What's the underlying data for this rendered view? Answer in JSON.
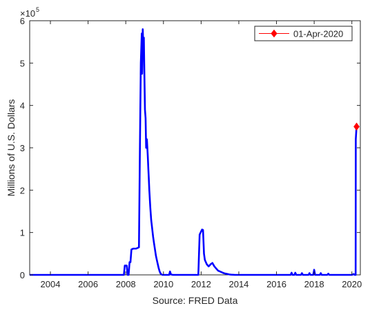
{
  "chart_data": {
    "type": "line",
    "title": "",
    "xlabel": "Source: FRED Data",
    "ylabel": "Millions of U.S. Dollars",
    "y_exponent_base": "×10",
    "y_exponent_power": "5",
    "xlim": [
      2002.9,
      2020.45
    ],
    "ylim": [
      0,
      600000
    ],
    "x_ticks": [
      2004,
      2006,
      2008,
      2010,
      2012,
      2014,
      2016,
      2018,
      2020
    ],
    "x_tick_labels": [
      "2004",
      "2006",
      "2008",
      "2010",
      "2012",
      "2014",
      "2016",
      "2018",
      "2020"
    ],
    "y_ticks": [
      0,
      100000,
      200000,
      300000,
      400000,
      500000,
      600000
    ],
    "y_tick_labels": [
      "0",
      "1",
      "2",
      "3",
      "4",
      "5",
      "6"
    ],
    "grid": false,
    "legend_position": "top-right",
    "series": [
      {
        "name": "01-Apr-2020",
        "color": "#0000ff",
        "x": [
          2002.9,
          2007.9,
          2007.95,
          2008.05,
          2008.1,
          2008.15,
          2008.2,
          2008.25,
          2008.3,
          2008.4,
          2008.55,
          2008.7,
          2008.75,
          2008.8,
          2008.85,
          2008.87,
          2008.9,
          2008.93,
          2008.96,
          2008.98,
          2009.02,
          2009.05,
          2009.08,
          2009.12,
          2009.17,
          2009.2,
          2009.22,
          2009.25,
          2009.3,
          2009.35,
          2009.4,
          2009.45,
          2009.5,
          2009.55,
          2009.6,
          2009.65,
          2009.7,
          2009.75,
          2009.8,
          2009.85,
          2009.9,
          2009.95,
          2010.0,
          2010.1,
          2010.2,
          2010.3,
          2010.35,
          2010.4,
          2010.5,
          2011.85,
          2011.92,
          2011.97,
          2012.05,
          2012.1,
          2012.15,
          2012.2,
          2012.3,
          2012.4,
          2012.5,
          2012.6,
          2012.7,
          2012.8,
          2012.9,
          2013.0,
          2013.1,
          2013.2,
          2013.3,
          2013.4,
          2013.5,
          2013.6,
          2013.8,
          2014.0,
          2014.5,
          2015.0,
          2015.5,
          2016.0,
          2016.5,
          2016.75,
          2016.8,
          2016.85,
          2016.95,
          2017.0,
          2017.05,
          2017.3,
          2017.35,
          2017.4,
          2017.7,
          2017.75,
          2017.8,
          2017.95,
          2018.0,
          2018.05,
          2018.1,
          2018.3,
          2018.35,
          2018.4,
          2018.7,
          2018.75,
          2018.8,
          2019.0,
          2019.5,
          2019.9,
          2020.0,
          2020.1,
          2020.15,
          2020.18,
          2020.2,
          2020.21,
          2020.25
        ],
        "y": [
          0,
          0,
          22000,
          22000,
          0,
          0,
          30000,
          30000,
          60000,
          62000,
          62000,
          65000,
          300000,
          500000,
          570000,
          475000,
          580000,
          540000,
          560000,
          500000,
          390000,
          370000,
          300000,
          320000,
          280000,
          250000,
          230000,
          200000,
          160000,
          130000,
          110000,
          90000,
          75000,
          60000,
          45000,
          35000,
          25000,
          15000,
          8000,
          3000,
          1000,
          0,
          0,
          0,
          0,
          0,
          8000,
          1000,
          0,
          0,
          95000,
          100000,
          107000,
          106000,
          50000,
          35000,
          25000,
          20000,
          25000,
          28000,
          20000,
          15000,
          10000,
          8000,
          6000,
          4000,
          3000,
          2000,
          1000,
          500,
          0,
          0,
          0,
          0,
          0,
          0,
          0,
          0,
          5000,
          0,
          0,
          5000,
          0,
          0,
          4000,
          0,
          0,
          4000,
          0,
          0,
          12000,
          0,
          0,
          0,
          4000,
          0,
          0,
          3000,
          0,
          0,
          0,
          0,
          0,
          2000,
          0,
          0,
          0,
          320000,
          350000
        ]
      }
    ],
    "highlight_point": {
      "x": 2020.25,
      "y": 350000,
      "color": "#ff0000"
    },
    "legend_entries": [
      "01-Apr-2020"
    ]
  }
}
